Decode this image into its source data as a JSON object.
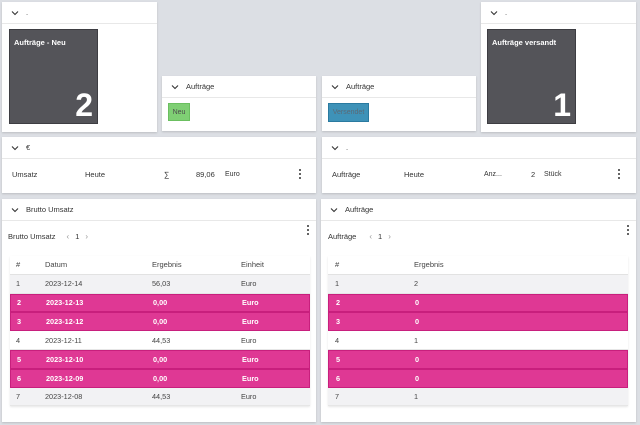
{
  "colors": {
    "background": "#dcdfe4",
    "tile": "#545459",
    "highlight_row": "#df3894",
    "status_new": "#7fcf74",
    "status_shipped": "#3e92b8"
  },
  "widgets": {
    "tile_new": {
      "header_title": ".",
      "label": "Aufträge - Neu",
      "value": "2"
    },
    "status_new": {
      "header_title": "Aufträge",
      "button_label": "Neu"
    },
    "status_shipped": {
      "header_title": "Aufträge",
      "button_label": "Versendet"
    },
    "tile_shipped": {
      "header_title": ".",
      "label": "Aufträge versandt",
      "value": "1"
    },
    "kpi_revenue": {
      "header_title": "€",
      "name": "Umsatz",
      "period": "Heute",
      "aggregation": "∑",
      "value": "89,06",
      "unit": "Euro"
    },
    "kpi_orders": {
      "header_title": ".",
      "name": "Aufträge",
      "period": "Heute",
      "aggregation": "Anz...",
      "value": "2",
      "unit": "Stück"
    },
    "table_revenue": {
      "header_title": "Brutto Umsatz",
      "toolbar_title": "Brutto Umsatz",
      "page": "1",
      "prev": "‹",
      "next": "›",
      "columns": [
        "#",
        "Datum",
        "Ergebnis",
        "Einheit"
      ],
      "rows": [
        {
          "n": "1",
          "datum": "2023-12-14",
          "ergebnis": "56,03",
          "einheit": "Euro",
          "highlight": false
        },
        {
          "n": "2",
          "datum": "2023-12-13",
          "ergebnis": "0,00",
          "einheit": "Euro",
          "highlight": true
        },
        {
          "n": "3",
          "datum": "2023-12-12",
          "ergebnis": "0,00",
          "einheit": "Euro",
          "highlight": true
        },
        {
          "n": "4",
          "datum": "2023-12-11",
          "ergebnis": "44,53",
          "einheit": "Euro",
          "highlight": false
        },
        {
          "n": "5",
          "datum": "2023-12-10",
          "ergebnis": "0,00",
          "einheit": "Euro",
          "highlight": true
        },
        {
          "n": "6",
          "datum": "2023-12-09",
          "ergebnis": "0,00",
          "einheit": "Euro",
          "highlight": true
        },
        {
          "n": "7",
          "datum": "2023-12-08",
          "ergebnis": "44,53",
          "einheit": "Euro",
          "highlight": false
        }
      ]
    },
    "table_orders": {
      "header_title": "Aufträge",
      "toolbar_title": "Aufträge",
      "page": "1",
      "prev": "‹",
      "next": "›",
      "columns": [
        "#",
        "Ergebnis"
      ],
      "rows": [
        {
          "n": "1",
          "ergebnis": "2",
          "highlight": false
        },
        {
          "n": "2",
          "ergebnis": "0",
          "highlight": true
        },
        {
          "n": "3",
          "ergebnis": "0",
          "highlight": true
        },
        {
          "n": "4",
          "ergebnis": "1",
          "highlight": false
        },
        {
          "n": "5",
          "ergebnis": "0",
          "highlight": true
        },
        {
          "n": "6",
          "ergebnis": "0",
          "highlight": true
        },
        {
          "n": "7",
          "ergebnis": "1",
          "highlight": false
        }
      ]
    }
  }
}
